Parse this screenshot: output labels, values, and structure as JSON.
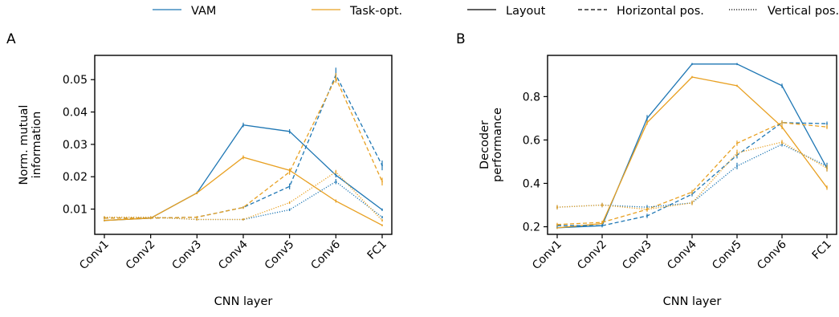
{
  "legend": {
    "placement": "top-center",
    "entries": [
      {
        "label": "VAM",
        "color": "#1f77b4",
        "dash": "solid"
      },
      {
        "label": "Task-opt.",
        "color": "#e8a021",
        "dash": "solid"
      },
      {
        "label": "Layout",
        "color": "#000000",
        "dash": "solid"
      },
      {
        "label": "Horizontal pos.",
        "color": "#000000",
        "dash": "dashed"
      },
      {
        "label": "Vertical pos.",
        "color": "#000000",
        "dash": "dotted"
      }
    ]
  },
  "chart_data": [
    {
      "panel": "A",
      "type": "line",
      "xlabel": "CNN layer",
      "ylabel": "Norm. mutual information",
      "ylabel_lines": [
        "Norm. mutual",
        "information"
      ],
      "categories": [
        "Conv1",
        "Conv2",
        "Conv3",
        "Conv4",
        "Conv5",
        "Conv6",
        "FC1"
      ],
      "ylim": [
        0.0022,
        0.0575
      ],
      "yticks": [
        0.01,
        0.02,
        0.03,
        0.04,
        0.05
      ],
      "ytick_labels": [
        "0.01",
        "0.02",
        "0.03",
        "0.04",
        "0.05"
      ],
      "series": [
        {
          "model": "VAM",
          "feature": "Layout",
          "color": "#1f77b4",
          "dash": "solid",
          "values": [
            0.0065,
            0.0072,
            0.015,
            0.036,
            0.034,
            0.0205,
            0.0098
          ],
          "err": [
            0.0003,
            0.0003,
            0.0004,
            0.0007,
            0.0007,
            0.0007,
            0.0004
          ]
        },
        {
          "model": "Task-opt.",
          "feature": "Layout",
          "color": "#e8a021",
          "dash": "solid",
          "values": [
            0.0065,
            0.0072,
            0.015,
            0.026,
            0.022,
            0.0125,
            0.005
          ],
          "err": [
            0.0003,
            0.0003,
            0.0004,
            0.0006,
            0.0006,
            0.0005,
            0.0003
          ]
        },
        {
          "model": "VAM",
          "feature": "Horizontal pos.",
          "color": "#1f77b4",
          "dash": "dashed",
          "values": [
            0.0072,
            0.0072,
            0.0075,
            0.0105,
            0.017,
            0.0515,
            0.0235
          ],
          "err": [
            0.0003,
            0.0003,
            0.0003,
            0.0004,
            0.0009,
            0.0022,
            0.0015
          ]
        },
        {
          "model": "Task-opt.",
          "feature": "Horizontal pos.",
          "color": "#e8a021",
          "dash": "dashed",
          "values": [
            0.0072,
            0.0072,
            0.0075,
            0.0105,
            0.0215,
            0.0505,
            0.0185
          ],
          "err": [
            0.0003,
            0.0003,
            0.0003,
            0.0004,
            0.0009,
            0.0015,
            0.0012
          ]
        },
        {
          "model": "VAM",
          "feature": "Vertical pos.",
          "color": "#1f77b4",
          "dash": "dotted",
          "values": [
            0.0075,
            0.0075,
            0.0068,
            0.0068,
            0.0098,
            0.0185,
            0.0075
          ],
          "err": [
            0.0003,
            0.0003,
            0.0003,
            0.0003,
            0.0004,
            0.0008,
            0.0004
          ]
        },
        {
          "model": "Task-opt.",
          "feature": "Vertical pos.",
          "color": "#e8a021",
          "dash": "dotted",
          "values": [
            0.0075,
            0.0075,
            0.0068,
            0.0068,
            0.012,
            0.0215,
            0.0065
          ],
          "err": [
            0.0003,
            0.0003,
            0.0003,
            0.0003,
            0.0004,
            0.0006,
            0.0004
          ]
        }
      ]
    },
    {
      "panel": "B",
      "type": "line",
      "xlabel": "CNN layer",
      "ylabel": "Decoder performance",
      "ylabel_lines": [
        "Decoder",
        "performance"
      ],
      "categories": [
        "Conv1",
        "Conv2",
        "Conv3",
        "Conv4",
        "Conv5",
        "Conv6",
        "FC1"
      ],
      "ylim": [
        0.165,
        0.99
      ],
      "yticks": [
        0.2,
        0.4,
        0.6,
        0.8
      ],
      "ytick_labels": [
        "0.2",
        "0.4",
        "0.6",
        "0.8"
      ],
      "series": [
        {
          "model": "VAM",
          "feature": "Layout",
          "color": "#1f77b4",
          "dash": "solid",
          "values": [
            0.195,
            0.205,
            0.7,
            0.95,
            0.95,
            0.85,
            0.47
          ],
          "err": [
            0.005,
            0.005,
            0.015,
            0.005,
            0.005,
            0.01,
            0.015
          ]
        },
        {
          "model": "Task-opt.",
          "feature": "Layout",
          "color": "#e8a021",
          "dash": "solid",
          "values": [
            0.195,
            0.215,
            0.68,
            0.89,
            0.85,
            0.66,
            0.38
          ],
          "err": [
            0.005,
            0.005,
            0.01,
            0.005,
            0.005,
            0.01,
            0.01
          ]
        },
        {
          "model": "VAM",
          "feature": "Horizontal pos.",
          "color": "#1f77b4",
          "dash": "dashed",
          "values": [
            0.205,
            0.205,
            0.25,
            0.35,
            0.53,
            0.68,
            0.675
          ],
          "err": [
            0.008,
            0.008,
            0.01,
            0.01,
            0.015,
            0.01,
            0.01
          ]
        },
        {
          "model": "Task-opt.",
          "feature": "Horizontal pos.",
          "color": "#e8a021",
          "dash": "dashed",
          "values": [
            0.21,
            0.22,
            0.28,
            0.36,
            0.585,
            0.68,
            0.66
          ],
          "err": [
            0.008,
            0.008,
            0.01,
            0.01,
            0.012,
            0.01,
            0.01
          ]
        },
        {
          "model": "VAM",
          "feature": "Vertical pos.",
          "color": "#1f77b4",
          "dash": "dotted",
          "values": [
            0.29,
            0.3,
            0.29,
            0.31,
            0.48,
            0.58,
            0.48
          ],
          "err": [
            0.01,
            0.01,
            0.01,
            0.01,
            0.015,
            0.01,
            0.015
          ]
        },
        {
          "model": "Task-opt.",
          "feature": "Vertical pos.",
          "color": "#e8a021",
          "dash": "dotted",
          "values": [
            0.29,
            0.3,
            0.28,
            0.31,
            0.54,
            0.59,
            0.47
          ],
          "err": [
            0.01,
            0.01,
            0.01,
            0.01,
            0.015,
            0.01,
            0.015
          ]
        }
      ]
    }
  ]
}
